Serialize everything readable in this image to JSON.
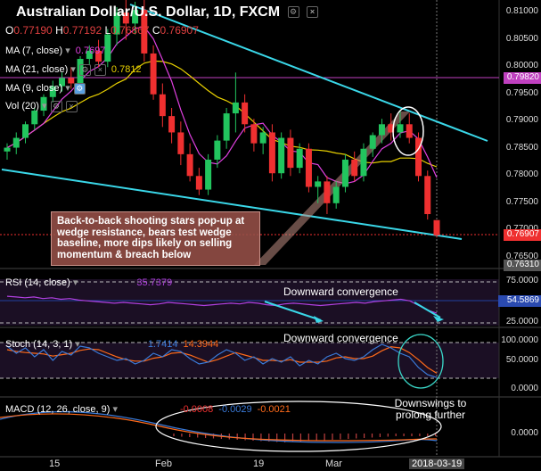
{
  "header": {
    "title": "Australian Dollar/U.S. Dollar, 1D, FXCM",
    "ohlc": [
      {
        "k": "O",
        "v": "0.77190"
      },
      {
        "k": "H",
        "v": "0.77192"
      },
      {
        "k": "L",
        "v": "0.76867"
      },
      {
        "k": "C",
        "v": "0.76907"
      }
    ]
  },
  "indicators": {
    "ma7": {
      "label": "MA (7, close)",
      "value": "0.7697",
      "color": "#e040e0"
    },
    "ma21": {
      "label": "MA (21, close)",
      "value": "0.7812",
      "color": "#e8d000"
    },
    "ma9": {
      "label": "MA (9, close)"
    },
    "vol": {
      "label": "Vol (20)"
    },
    "rsi": {
      "label": "RSI (14, close)",
      "value": "35.7379"
    },
    "stoch": {
      "label": "Stoch (14, 3, 1)",
      "k": "1.7414",
      "d": "14.3944"
    },
    "macd": {
      "label": "MACD (12, 26, close, 9)",
      "hist": "-0.0008",
      "macd": "-0.0029",
      "signal": "-0.0021"
    }
  },
  "annotations": {
    "note": "Back-to-back shooting stars pop-up at wedge resistance, bears test wedge baseline, more dips likely on selling momentum & breach below",
    "rsi_conv": "Downward convergence",
    "stoch_conv": "Downward convergence",
    "macd_note": "Downswings to prolong further"
  },
  "axis": {
    "price_ticks": [
      "0.81000",
      "0.80500",
      "0.80000",
      "0.79500",
      "0.79000",
      "0.78500",
      "0.78000",
      "0.77500",
      "0.77000",
      "0.76500"
    ],
    "price_tags": [
      "0.79820",
      "0.76907",
      "0.76310"
    ],
    "rsi_ticks": [
      "75.0000",
      "25.0000"
    ],
    "rsi_tag": "54.5869",
    "stoch_ticks": [
      "100.0000",
      "50.0000",
      "0.0000"
    ],
    "macd_ticks": [
      "0.0000"
    ],
    "x_ticks": [
      "15",
      "Feb",
      "19",
      "Mar"
    ],
    "x_current": "2018-03-19"
  },
  "colors": {
    "up": "#22c55e",
    "down": "#ef3030",
    "trend": "#3ad7e8",
    "ma21": "#e8d000",
    "ma7": "#e040e0",
    "rsi": "#b040e0",
    "stoch_k": "#3a7ad8",
    "stoch_d": "#ff6a1a"
  },
  "chart_data": {
    "type": "candlestick",
    "symbol": "AUDUSD",
    "timeframe": "1D",
    "ylim": [
      0.7635,
      0.8115
    ],
    "candles": [
      {
        "o": 0.7845,
        "h": 0.786,
        "l": 0.783,
        "c": 0.7852
      },
      {
        "o": 0.7852,
        "h": 0.788,
        "l": 0.784,
        "c": 0.787
      },
      {
        "o": 0.787,
        "h": 0.79,
        "l": 0.786,
        "c": 0.7895
      },
      {
        "o": 0.7895,
        "h": 0.7925,
        "l": 0.7885,
        "c": 0.792
      },
      {
        "o": 0.792,
        "h": 0.795,
        "l": 0.791,
        "c": 0.7945
      },
      {
        "o": 0.7945,
        "h": 0.7975,
        "l": 0.7935,
        "c": 0.7965
      },
      {
        "o": 0.7965,
        "h": 0.799,
        "l": 0.7955,
        "c": 0.798
      },
      {
        "o": 0.798,
        "h": 0.8,
        "l": 0.796,
        "c": 0.797
      },
      {
        "o": 0.797,
        "h": 0.802,
        "l": 0.796,
        "c": 0.8015
      },
      {
        "o": 0.8015,
        "h": 0.804,
        "l": 0.8005,
        "c": 0.803
      },
      {
        "o": 0.803,
        "h": 0.805,
        "l": 0.8,
        "c": 0.801
      },
      {
        "o": 0.801,
        "h": 0.807,
        "l": 0.8,
        "c": 0.806
      },
      {
        "o": 0.806,
        "h": 0.811,
        "l": 0.804,
        "c": 0.81
      },
      {
        "o": 0.81,
        "h": 0.8125,
        "l": 0.805,
        "c": 0.808
      },
      {
        "o": 0.808,
        "h": 0.812,
        "l": 0.806,
        "c": 0.8105
      },
      {
        "o": 0.8105,
        "h": 0.8125,
        "l": 0.801,
        "c": 0.8025
      },
      {
        "o": 0.8025,
        "h": 0.804,
        "l": 0.794,
        "c": 0.795
      },
      {
        "o": 0.795,
        "h": 0.797,
        "l": 0.789,
        "c": 0.791
      },
      {
        "o": 0.791,
        "h": 0.7925,
        "l": 0.786,
        "c": 0.788
      },
      {
        "o": 0.788,
        "h": 0.79,
        "l": 0.782,
        "c": 0.784
      },
      {
        "o": 0.784,
        "h": 0.786,
        "l": 0.779,
        "c": 0.78
      },
      {
        "o": 0.78,
        "h": 0.7815,
        "l": 0.7765,
        "c": 0.7775
      },
      {
        "o": 0.7775,
        "h": 0.784,
        "l": 0.7765,
        "c": 0.783
      },
      {
        "o": 0.783,
        "h": 0.7875,
        "l": 0.7815,
        "c": 0.7865
      },
      {
        "o": 0.7865,
        "h": 0.7925,
        "l": 0.785,
        "c": 0.7915
      },
      {
        "o": 0.7915,
        "h": 0.799,
        "l": 0.788,
        "c": 0.7935
      },
      {
        "o": 0.7935,
        "h": 0.795,
        "l": 0.788,
        "c": 0.7895
      },
      {
        "o": 0.7895,
        "h": 0.7905,
        "l": 0.7845,
        "c": 0.786
      },
      {
        "o": 0.786,
        "h": 0.789,
        "l": 0.784,
        "c": 0.788
      },
      {
        "o": 0.788,
        "h": 0.7895,
        "l": 0.779,
        "c": 0.7805
      },
      {
        "o": 0.7805,
        "h": 0.788,
        "l": 0.7795,
        "c": 0.787
      },
      {
        "o": 0.787,
        "h": 0.7885,
        "l": 0.78,
        "c": 0.7815
      },
      {
        "o": 0.7815,
        "h": 0.786,
        "l": 0.7805,
        "c": 0.785
      },
      {
        "o": 0.785,
        "h": 0.786,
        "l": 0.777,
        "c": 0.778
      },
      {
        "o": 0.778,
        "h": 0.78,
        "l": 0.775,
        "c": 0.779
      },
      {
        "o": 0.779,
        "h": 0.78,
        "l": 0.773,
        "c": 0.775
      },
      {
        "o": 0.775,
        "h": 0.779,
        "l": 0.774,
        "c": 0.778
      },
      {
        "o": 0.778,
        "h": 0.784,
        "l": 0.777,
        "c": 0.783
      },
      {
        "o": 0.783,
        "h": 0.7845,
        "l": 0.779,
        "c": 0.78
      },
      {
        "o": 0.78,
        "h": 0.786,
        "l": 0.779,
        "c": 0.785
      },
      {
        "o": 0.785,
        "h": 0.788,
        "l": 0.7835,
        "c": 0.7875
      },
      {
        "o": 0.7875,
        "h": 0.7905,
        "l": 0.786,
        "c": 0.7895
      },
      {
        "o": 0.7895,
        "h": 0.7915,
        "l": 0.7865,
        "c": 0.788
      },
      {
        "o": 0.788,
        "h": 0.792,
        "l": 0.787,
        "c": 0.7895
      },
      {
        "o": 0.7895,
        "h": 0.7915,
        "l": 0.786,
        "c": 0.787
      },
      {
        "o": 0.787,
        "h": 0.788,
        "l": 0.779,
        "c": 0.78
      },
      {
        "o": 0.78,
        "h": 0.781,
        "l": 0.772,
        "c": 0.773
      },
      {
        "o": 0.7719,
        "h": 0.7719,
        "l": 0.7687,
        "c": 0.7691
      }
    ]
  }
}
